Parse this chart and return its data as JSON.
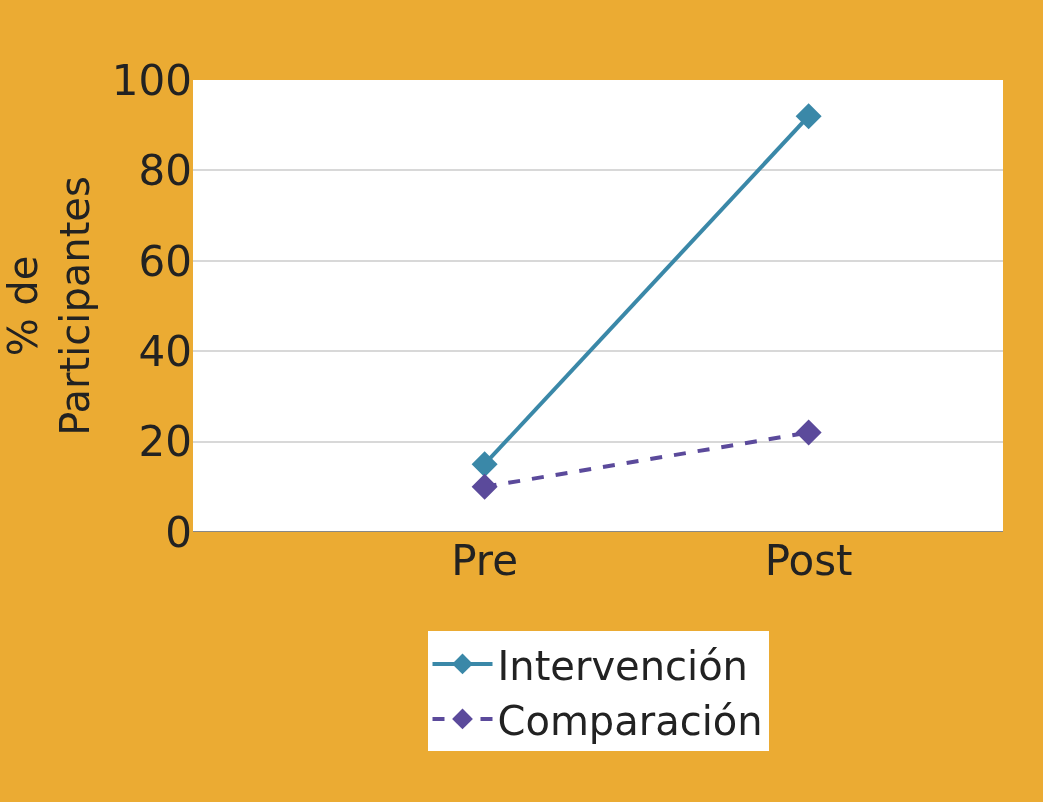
{
  "chart_data": {
    "type": "line",
    "ylabel": "% de\nParticipantes",
    "categories": [
      "Pre",
      "Post"
    ],
    "series": [
      {
        "name": "Intervención",
        "color": "#3a88a8",
        "values": [
          15,
          92
        ],
        "line_style": "solid"
      },
      {
        "name": "Comparación",
        "color": "#5b4a9b",
        "values": [
          10,
          22
        ],
        "line_style": "dashed"
      }
    ],
    "ylim": [
      0,
      100
    ],
    "yticks": [
      0,
      20,
      40,
      60,
      80,
      100
    ],
    "grid": "y",
    "legend": "bottom",
    "marker": "diamond"
  }
}
